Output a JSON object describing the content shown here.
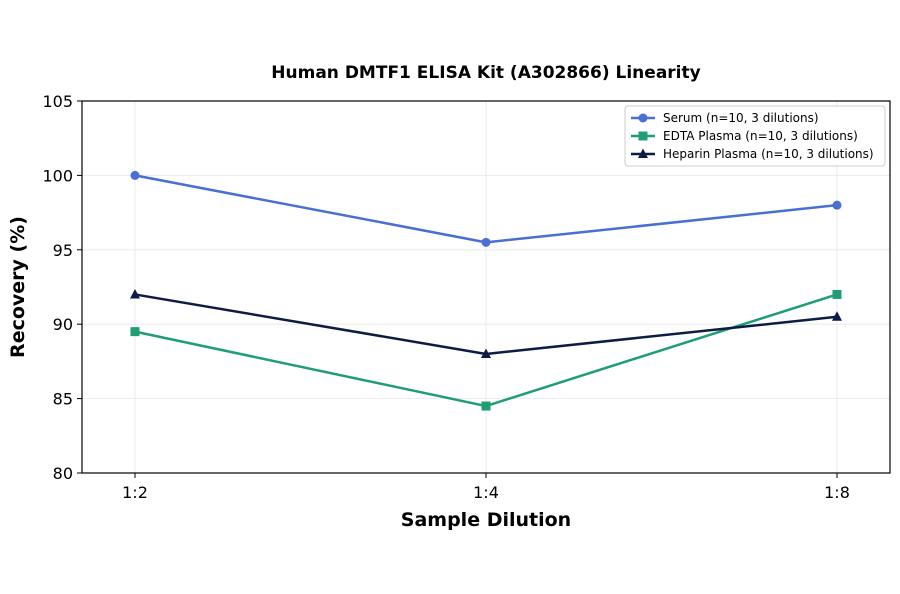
{
  "chart_data": {
    "type": "line",
    "title": "Human DMTF1 ELISA Kit (A302866) Linearity",
    "xlabel": "Sample Dilution",
    "ylabel": "Recovery (%)",
    "categories": [
      "1:2",
      "1:4",
      "1:8"
    ],
    "ylim": [
      80,
      105
    ],
    "yticks": [
      80,
      85,
      90,
      95,
      100,
      105
    ],
    "grid": true,
    "legend_position": "top-right",
    "series": [
      {
        "name": "Serum (n=10, 3 dilutions)",
        "values": [
          100,
          95.5,
          98
        ],
        "color": "#4a6fd4",
        "marker": "circle"
      },
      {
        "name": "EDTA Plasma (n=10, 3 dilutions)",
        "values": [
          89.5,
          84.5,
          92
        ],
        "color": "#1f9e74",
        "marker": "square"
      },
      {
        "name": "Heparin Plasma (n=10, 3 dilutions)",
        "values": [
          92,
          88,
          90.5
        ],
        "color": "#0d1b45",
        "marker": "triangle"
      }
    ]
  }
}
